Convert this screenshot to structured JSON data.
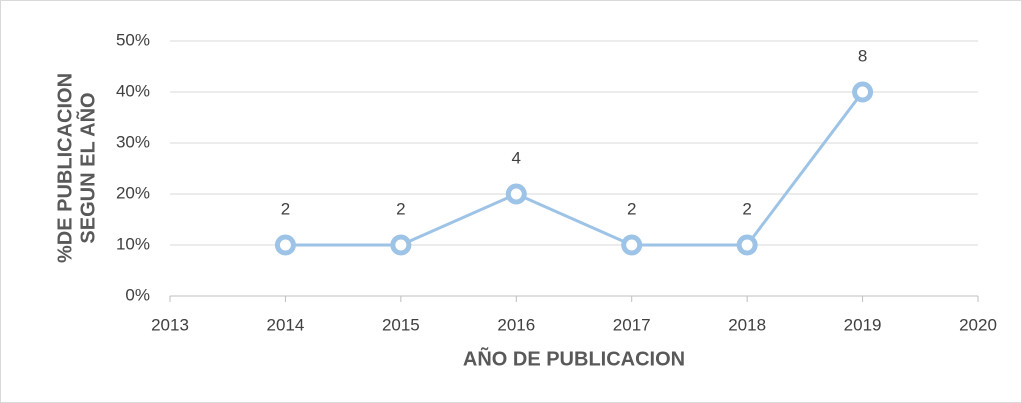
{
  "chart_data": {
    "type": "line",
    "xlabel": "AÑO DE PUBLICACION",
    "ylabel": [
      "%DE PUBLICACION",
      "SEGUN EL AÑO"
    ],
    "series": [
      {
        "color": "#9dc3e6",
        "x": [
          2014,
          2015,
          2016,
          2017,
          2018,
          2019
        ],
        "values": [
          10,
          10,
          20,
          10,
          10,
          40
        ],
        "counts": [
          2,
          2,
          4,
          2,
          2,
          8
        ]
      }
    ],
    "xlim": [
      2013,
      2020
    ],
    "xticks": [
      2013,
      2014,
      2015,
      2016,
      2017,
      2018,
      2019,
      2020
    ],
    "ylim": [
      0,
      50
    ],
    "yticks": [
      {
        "value": 0,
        "label": "0%"
      },
      {
        "value": 10,
        "label": "10%"
      },
      {
        "value": 20,
        "label": "20%"
      },
      {
        "value": 30,
        "label": "30%"
      },
      {
        "value": 40,
        "label": "40%"
      },
      {
        "value": 50,
        "label": "50%"
      }
    ],
    "grid": true
  }
}
